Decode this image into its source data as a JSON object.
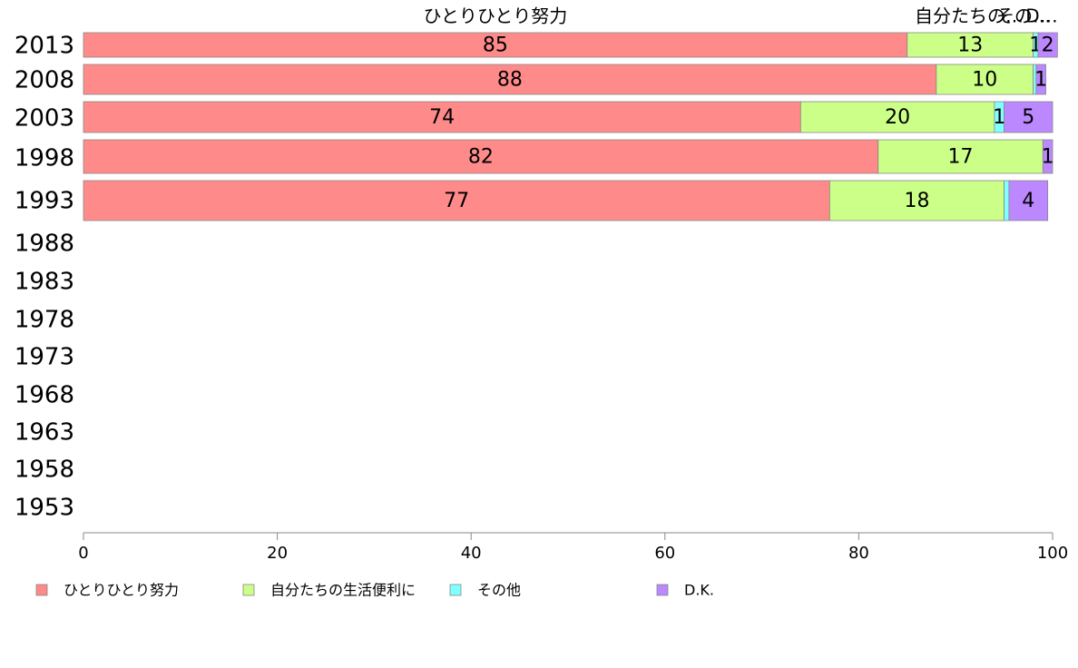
{
  "chart_data": {
    "type": "bar",
    "orientation": "horizontal",
    "stacked": true,
    "categories": [
      "2013",
      "2008",
      "2003",
      "1998",
      "1993",
      "1988",
      "1983",
      "1978",
      "1973",
      "1968",
      "1963",
      "1958",
      "1953"
    ],
    "series": [
      {
        "name": "ひとりひとり努力",
        "color": "#ff8a8a",
        "values": [
          85,
          88,
          74,
          82,
          77,
          null,
          null,
          null,
          null,
          null,
          null,
          null,
          null
        ]
      },
      {
        "name": "自分たちの生活便利に",
        "color": "#ccff88",
        "values": [
          13,
          10,
          20,
          17,
          18,
          null,
          null,
          null,
          null,
          null,
          null,
          null,
          null
        ]
      },
      {
        "name": "その他",
        "color": "#80ffff",
        "values": [
          0.5,
          0.3,
          1,
          0,
          0.5,
          null,
          null,
          null,
          null,
          null,
          null,
          null,
          null
        ]
      },
      {
        "name": "D.K.",
        "color": "#bb88ff",
        "values": [
          2,
          1,
          5,
          1,
          4,
          null,
          null,
          null,
          null,
          null,
          null,
          null,
          null
        ]
      }
    ],
    "data_labels": [
      [
        "85",
        "13",
        "1",
        "2"
      ],
      [
        "88",
        "10",
        "",
        "1"
      ],
      [
        "74",
        "20",
        "1",
        "5"
      ],
      [
        "82",
        "17",
        "",
        "1"
      ],
      [
        "77",
        "18",
        "",
        "4"
      ]
    ],
    "top_labels": [
      "ひとりひとり努力",
      "自分たちの…",
      "その…",
      "D…"
    ],
    "xlim": [
      0,
      100
    ],
    "x_ticks": [
      "0",
      "20",
      "40",
      "60",
      "80",
      "100"
    ],
    "grid": false,
    "legend_position": "bottom"
  }
}
